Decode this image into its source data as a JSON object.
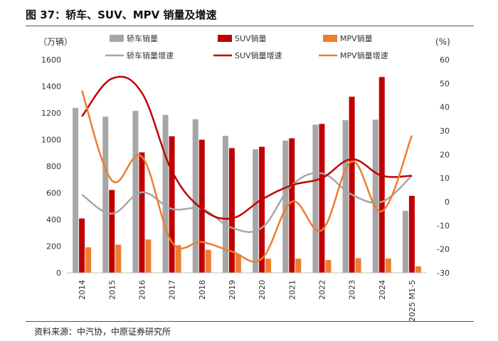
{
  "title": "图 37：轿车、SUV、MPV 销量及增速",
  "source": "资料来源：中汽协，中原证券研究所",
  "chart_data": {
    "type": "bar+line",
    "left_axis_label": "（万辆）",
    "right_axis_label": "(%)",
    "ylim_left": [
      0,
      1600
    ],
    "yticks_left": [
      "0",
      "200",
      "400",
      "600",
      "800",
      "1000",
      "1200",
      "1400",
      "1600"
    ],
    "ylim_right": [
      -30,
      60
    ],
    "yticks_right": [
      "-30",
      "-20",
      "-10",
      "0",
      "10",
      "20",
      "30",
      "40",
      "50",
      "60"
    ],
    "categories": [
      "2014",
      "2015",
      "2016",
      "2017",
      "2018",
      "2019",
      "2020",
      "2021",
      "2022",
      "2023",
      "2024",
      "2025 M1-5"
    ],
    "bar_series": [
      {
        "name": "轿车销量",
        "color": "#a6a6a6",
        "values": [
          1238,
          1172,
          1215,
          1185,
          1153,
          1028,
          927,
          993,
          1112,
          1146,
          1150,
          465
        ]
      },
      {
        "name": "SUV销量",
        "color": "#c00000",
        "values": [
          408,
          622,
          904,
          1025,
          999,
          936,
          946,
          1010,
          1118,
          1322,
          1470,
          578
        ]
      },
      {
        "name": "MPV销量",
        "color": "#ed7d31",
        "values": [
          191,
          211,
          250,
          207,
          173,
          138,
          106,
          106,
          96,
          110,
          108,
          48
        ]
      }
    ],
    "line_series": [
      {
        "name": "轿车销量增速",
        "color": "#a6a6a6",
        "values": [
          3,
          -5,
          4,
          -3,
          -3,
          -11,
          -11,
          7,
          12,
          3,
          0,
          11
        ]
      },
      {
        "name": "SUV销量增速",
        "color": "#c00000",
        "values": [
          36,
          52,
          46,
          13,
          -3,
          -7,
          1,
          7,
          10,
          18,
          11,
          11
        ]
      },
      {
        "name": "MPV销量增速",
        "color": "#ed7d31",
        "values": [
          47,
          9,
          19,
          -17,
          -17,
          -21,
          -24,
          0,
          -12,
          17,
          -4,
          28
        ]
      }
    ]
  }
}
